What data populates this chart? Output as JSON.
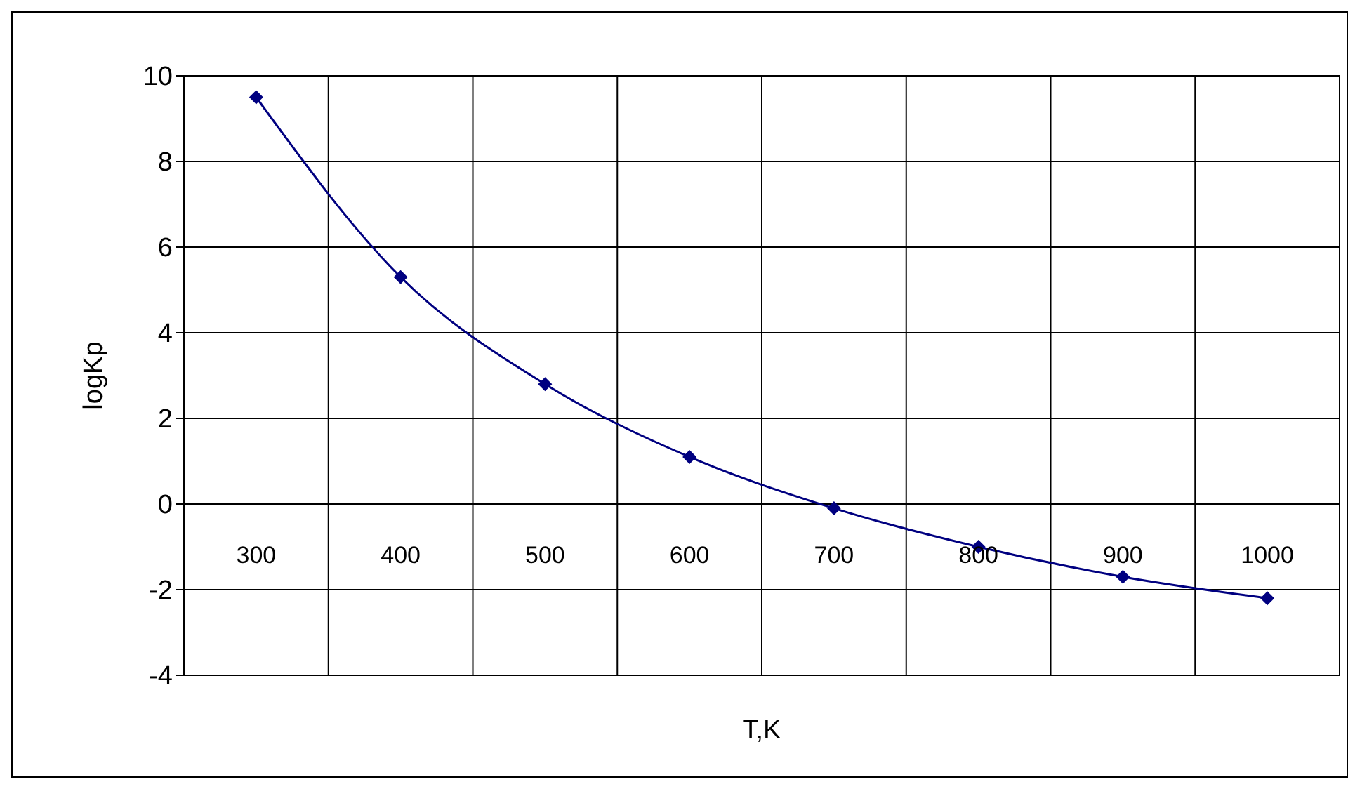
{
  "chart_data": {
    "type": "line",
    "xlabel": "T,K",
    "ylabel": "logKp",
    "categories": [
      "300",
      "400",
      "500",
      "600",
      "700",
      "800",
      "900",
      "1000"
    ],
    "series": [
      {
        "color": "#000080",
        "values": [
          9.5,
          5.3,
          2.8,
          1.1,
          -0.1,
          -1.0,
          -1.7,
          -2.2
        ]
      }
    ],
    "ylim": [
      -4,
      10
    ],
    "yticks": [
      -4,
      -2,
      0,
      2,
      4,
      6,
      8,
      10
    ],
    "grid": true,
    "marker": "diamond",
    "line_style": "solid",
    "legend": false
  }
}
